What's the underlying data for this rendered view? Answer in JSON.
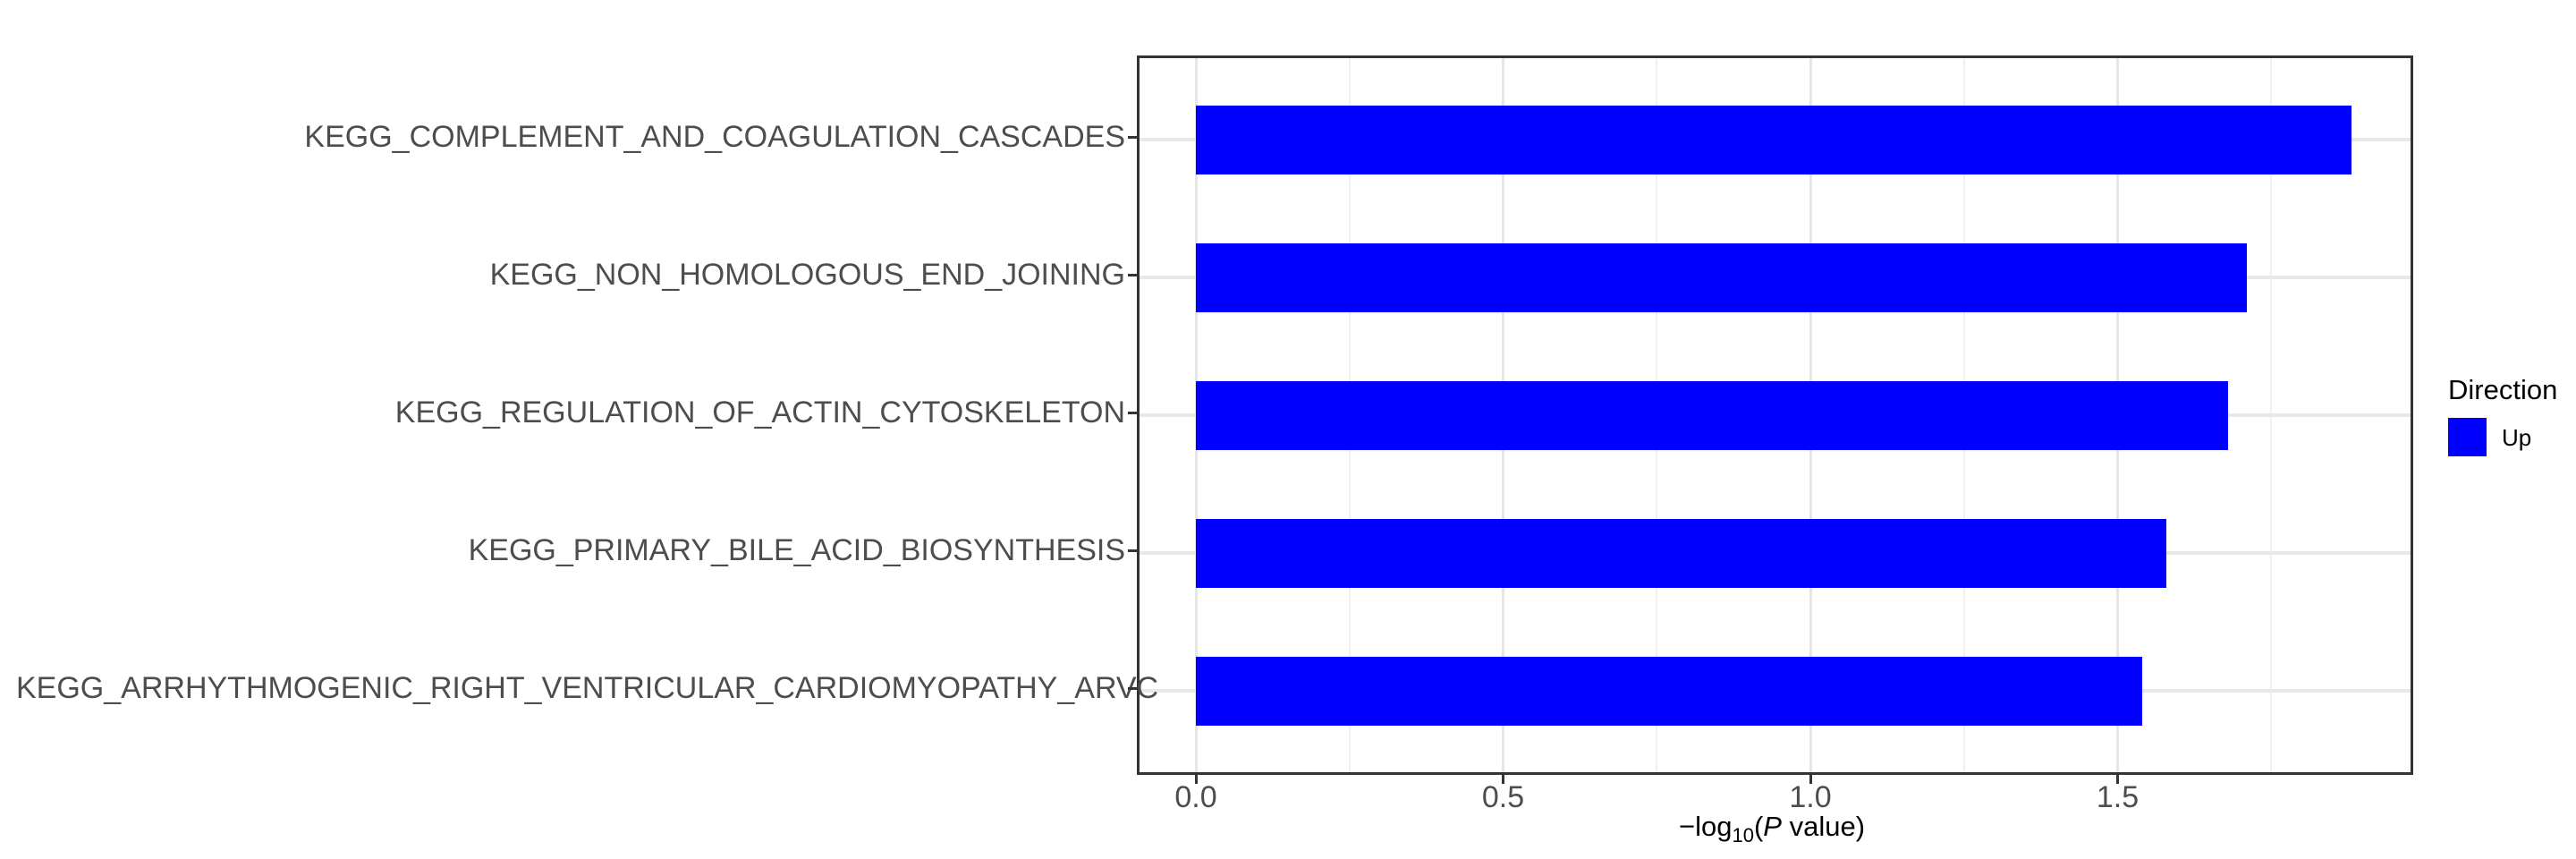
{
  "chart_data": {
    "type": "bar",
    "orientation": "horizontal",
    "title": "",
    "categories": [
      "KEGG_COMPLEMENT_AND_COAGULATION_CASCADES",
      "KEGG_NON_HOMOLOGOUS_END_JOINING",
      "KEGG_REGULATION_OF_ACTIN_CYTOSKELETON",
      "KEGG_PRIMARY_BILE_ACID_BIOSYNTHESIS",
      "KEGG_ARRHYTHMOGENIC_RIGHT_VENTRICULAR_CARDIOMYOPATHY_ARVC"
    ],
    "series": [
      {
        "name": "Up",
        "values": [
          1.88,
          1.71,
          1.68,
          1.58,
          1.54
        ]
      }
    ],
    "xlabel": "-log10(P value)",
    "xlabel_parts": {
      "prefix": "−log",
      "subscript": "10",
      "paren_open": "(",
      "italic_var": "P",
      "suffix": " value)"
    },
    "ylabel": "",
    "x_ticks": [
      "0.0",
      "0.5",
      "1.0",
      "1.5"
    ],
    "x_tick_values": [
      0,
      0.5,
      1.0,
      1.5
    ],
    "x_minor_tick_values": [
      0.25,
      0.75,
      1.25,
      1.75
    ],
    "xlim": [
      -0.09,
      1.98
    ],
    "grid": "major and minor vertical, major horizontal",
    "legend": {
      "title": "Direction",
      "position": "right",
      "entries": [
        {
          "label": "Up",
          "color": "#0000ff"
        }
      ]
    },
    "colors": {
      "bar_fill": "#0000ff",
      "panel_border": "#333333",
      "grid_major": "#e6e6e6",
      "grid_minor": "#f1f1f1",
      "axis_text": "#4d4d4d",
      "axis_title": "#000000",
      "background": "#ffffff"
    }
  }
}
